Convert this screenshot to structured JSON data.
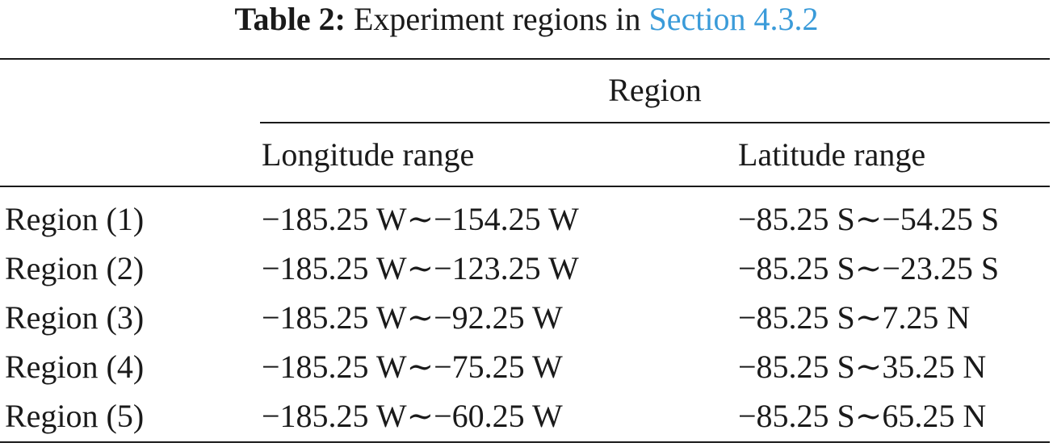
{
  "caption": {
    "label": "Table 2:",
    "text": " Experiment regions in ",
    "link": "Section 4.3.2"
  },
  "header": {
    "group": "Region",
    "columns": [
      "Longitude range",
      "Latitude range"
    ]
  },
  "rows": [
    {
      "name": "Region (1)",
      "longitude": "−185.25 W∼−154.25 W",
      "latitude": "−85.25 S∼−54.25 S"
    },
    {
      "name": "Region (2)",
      "longitude": "−185.25 W∼−123.25 W",
      "latitude": "−85.25 S∼−23.25 S"
    },
    {
      "name": "Region (3)",
      "longitude": "−185.25 W∼−92.25 W",
      "latitude": "−85.25 S∼7.25 N"
    },
    {
      "name": "Region (4)",
      "longitude": "−185.25 W∼−75.25 W",
      "latitude": "−85.25 S∼35.25 N"
    },
    {
      "name": "Region (5)",
      "longitude": "−185.25 W∼−60.25 W",
      "latitude": "−85.25 S∼65.25 N"
    }
  ],
  "colors": {
    "link": "#3a9bd9",
    "text": "#1a1a1a"
  }
}
